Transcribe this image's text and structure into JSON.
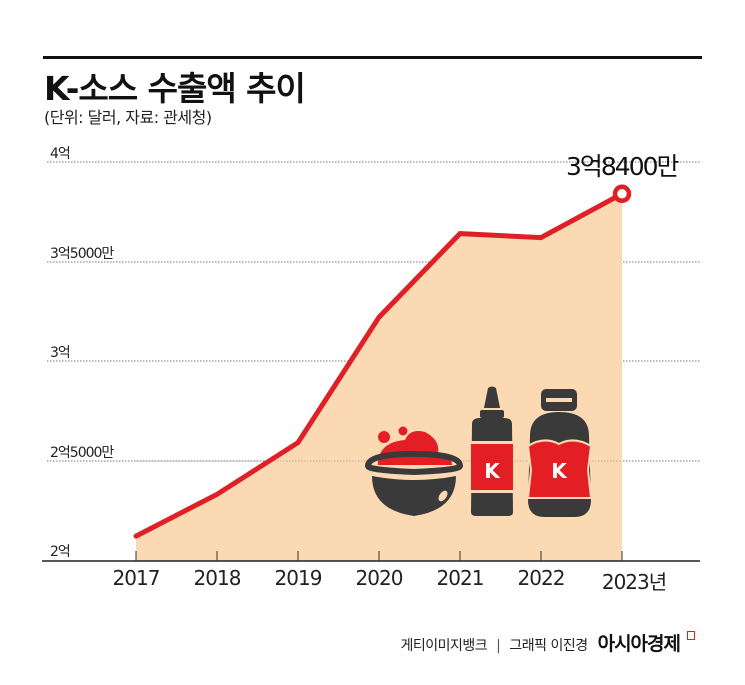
{
  "header": {
    "title": "K-소스 수출액 추이",
    "subtitle": "(단위: 달러, 자료: 관세청)"
  },
  "chart_data": {
    "type": "area",
    "title": "K-소스 수출액 추이",
    "subtitle": "(단위: 달러, 자료: 관세청)",
    "xlabel": "",
    "ylabel": "",
    "unit": "달러",
    "source": "관세청",
    "categories": [
      "2017",
      "2018",
      "2019",
      "2020",
      "2021",
      "2022",
      "2023년"
    ],
    "x": [
      2017,
      2018,
      2019,
      2020,
      2021,
      2022,
      2023
    ],
    "values": [
      212000000,
      233000000,
      259000000,
      322000000,
      364000000,
      362000000,
      384000000
    ],
    "ylim": [
      200000000,
      400000000
    ],
    "yticks": [
      200000000,
      250000000,
      300000000,
      350000000,
      400000000
    ],
    "ytick_labels": [
      "2억",
      "2억5000만",
      "3억",
      "3억5000만",
      "4억"
    ],
    "grid": "horizontal dotted",
    "legend": "none",
    "annotations": [
      {
        "x": 2023,
        "label": "3억8400만"
      }
    ],
    "colors": {
      "line": "#E02027",
      "fill": "#FBD9B3",
      "marker_fill": "#FFFFFF"
    }
  },
  "yaxis": {
    "labels": [
      "4억",
      "3억5000만",
      "3억",
      "2억5000만",
      "2억"
    ]
  },
  "xaxis": {
    "labels": [
      "2017",
      "2018",
      "2019",
      "2020",
      "2021",
      "2022",
      "2023년"
    ]
  },
  "callout": {
    "label": "3억8400만"
  },
  "illustration": {
    "icons": [
      "sauce-bowl",
      "squeeze-bottle",
      "sauce-jar"
    ],
    "bottle_label": "K",
    "jar_label": "K"
  },
  "footer": {
    "credit_photo": "게티이미지뱅크",
    "separator": "|",
    "credit_graphic": "그래픽 이진경",
    "brand": "아시아경제"
  }
}
